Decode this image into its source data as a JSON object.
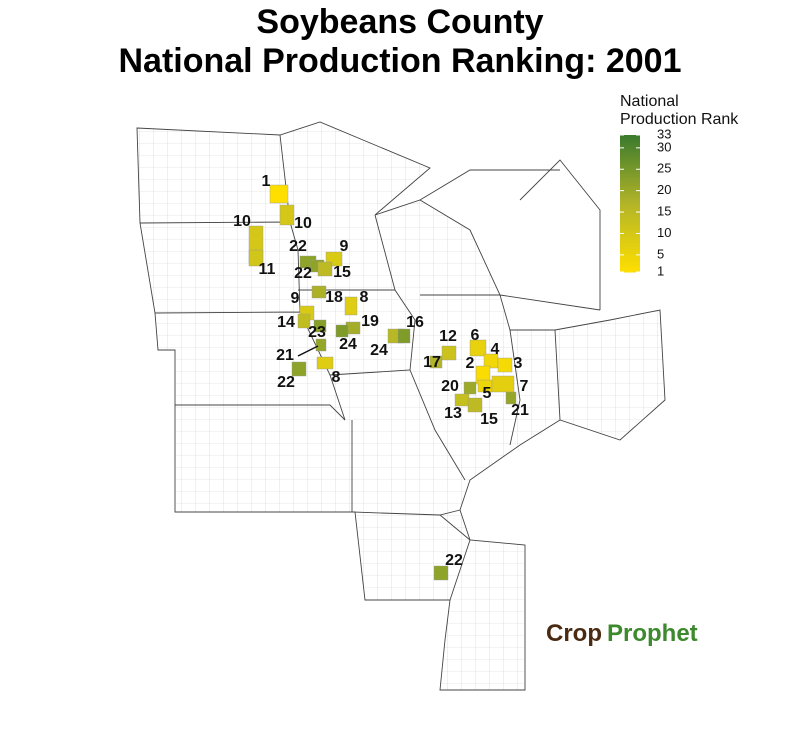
{
  "title": [
    "Soybeans County",
    "National Production Ranking: 2001"
  ],
  "legend": {
    "title": [
      "National",
      "Production Rank"
    ],
    "range": [
      1,
      33
    ],
    "ticks": [
      1,
      5,
      10,
      15,
      20,
      25,
      30,
      33
    ],
    "colors": [
      "#ffdf00",
      "#b3b528",
      "#3b7a2d"
    ]
  },
  "counties": [
    {
      "rank": 1
    },
    {
      "rank": 10
    },
    {
      "rank": 10
    },
    {
      "rank": 11
    },
    {
      "rank": 22
    },
    {
      "rank": 9
    },
    {
      "rank": 22
    },
    {
      "rank": 15
    },
    {
      "rank": 9
    },
    {
      "rank": 18
    },
    {
      "rank": 8
    },
    {
      "rank": 14
    },
    {
      "rank": 23
    },
    {
      "rank": 19
    },
    {
      "rank": 16
    },
    {
      "rank": 24
    },
    {
      "rank": 24
    },
    {
      "rank": 21
    },
    {
      "rank": 22
    },
    {
      "rank": 8
    },
    {
      "rank": 12
    },
    {
      "rank": 6
    },
    {
      "rank": 4
    },
    {
      "rank": 17
    },
    {
      "rank": 2
    },
    {
      "rank": 3
    },
    {
      "rank": 20
    },
    {
      "rank": 5
    },
    {
      "rank": 7
    },
    {
      "rank": 13
    },
    {
      "rank": 15
    },
    {
      "rank": 21
    },
    {
      "rank": 22
    }
  ],
  "logo": [
    "Crop",
    "Prophet"
  ]
}
